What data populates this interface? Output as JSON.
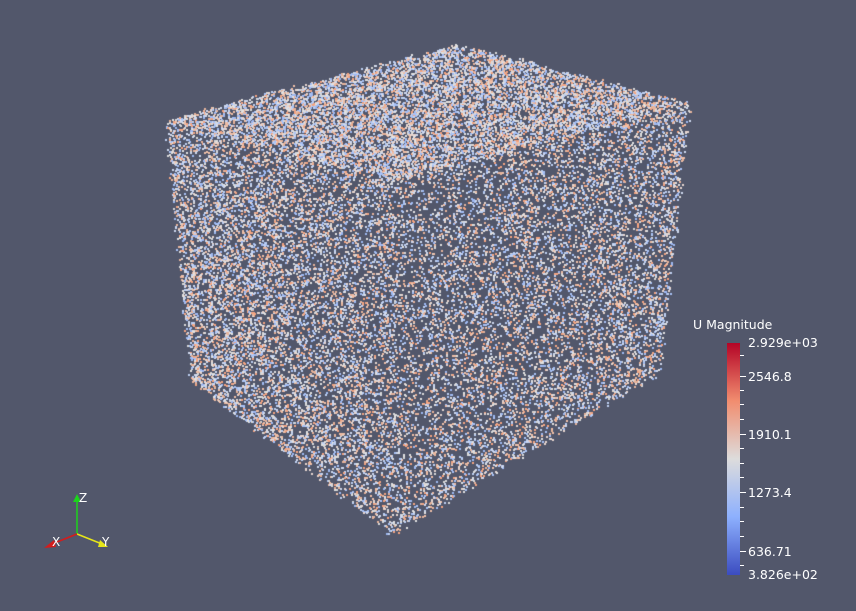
{
  "scalar_bar": {
    "title": "U Magnitude",
    "labels": [
      "2.929e+03",
      "2546.8",
      "1910.1",
      "1273.4",
      "636.71",
      "3.826e+02"
    ],
    "colors": {
      "top": "#b40426",
      "upper": "#f18d6f",
      "mid": "#dddcdc",
      "lower": "#8db0fe",
      "bottom": "#3b4cc0"
    }
  },
  "axes": {
    "x_label": "X",
    "y_label": "Y",
    "z_label": "Z",
    "x_color": "#d41c1c",
    "y_color": "#e6e619",
    "z_color": "#1cd41c"
  },
  "background_color": "#52576b"
}
